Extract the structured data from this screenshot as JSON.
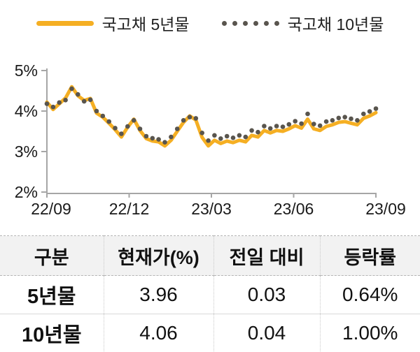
{
  "legend": {
    "series1_label": "국고채 5년물",
    "series2_label": "국고채 10년물"
  },
  "chart_data": {
    "type": "line",
    "title": "",
    "xlabel": "",
    "ylabel": "",
    "ylim": [
      2,
      5
    ],
    "grid": false,
    "legend_position": "top",
    "y_tick_values": [
      5,
      4,
      3,
      2
    ],
    "y_tick_labels": [
      "5%",
      "4%",
      "3%",
      "2%"
    ],
    "x_tick_labels": [
      "22/09",
      "22/12",
      "23/03",
      "23/06",
      "23/09"
    ],
    "series": [
      {
        "name": "국고채 5년물",
        "style": "solid-line",
        "color": "#F5AF23",
        "values": [
          4.22,
          4.04,
          4.18,
          4.32,
          4.6,
          4.38,
          4.26,
          4.31,
          3.95,
          3.85,
          3.7,
          3.54,
          3.36,
          3.6,
          3.8,
          3.52,
          3.32,
          3.26,
          3.24,
          3.14,
          3.28,
          3.5,
          3.72,
          3.88,
          3.78,
          3.35,
          3.14,
          3.28,
          3.2,
          3.26,
          3.22,
          3.28,
          3.24,
          3.4,
          3.36,
          3.52,
          3.46,
          3.52,
          3.5,
          3.56,
          3.64,
          3.58,
          3.8,
          3.56,
          3.52,
          3.62,
          3.66,
          3.72,
          3.74,
          3.7,
          3.66,
          3.82,
          3.88,
          3.96
        ]
      },
      {
        "name": "국고채 10년물",
        "style": "dotted",
        "color": "#59554E",
        "values": [
          4.18,
          4.1,
          4.21,
          4.27,
          4.55,
          4.41,
          4.24,
          4.28,
          4.0,
          3.88,
          3.74,
          3.58,
          3.44,
          3.62,
          3.77,
          3.56,
          3.38,
          3.33,
          3.3,
          3.23,
          3.36,
          3.56,
          3.77,
          3.85,
          3.82,
          3.46,
          3.27,
          3.4,
          3.32,
          3.38,
          3.34,
          3.4,
          3.36,
          3.52,
          3.48,
          3.63,
          3.57,
          3.63,
          3.61,
          3.67,
          3.75,
          3.69,
          3.93,
          3.68,
          3.64,
          3.74,
          3.77,
          3.83,
          3.85,
          3.81,
          3.77,
          3.93,
          3.99,
          4.06
        ]
      }
    ]
  },
  "table": {
    "headers": [
      "구분",
      "현재가(%)",
      "전일 대비",
      "등락률"
    ],
    "rows": [
      [
        "5년물",
        "3.96",
        "0.03",
        "0.64%"
      ],
      [
        "10년물",
        "4.06",
        "0.04",
        "1.00%"
      ]
    ]
  },
  "colors": {
    "series_5yr": "#F5AF23",
    "series_10yr": "#59554E",
    "axis": "#A6A6A6",
    "tick_text": "#1A1A1A",
    "table_header_bg": "#F2F2F2"
  }
}
